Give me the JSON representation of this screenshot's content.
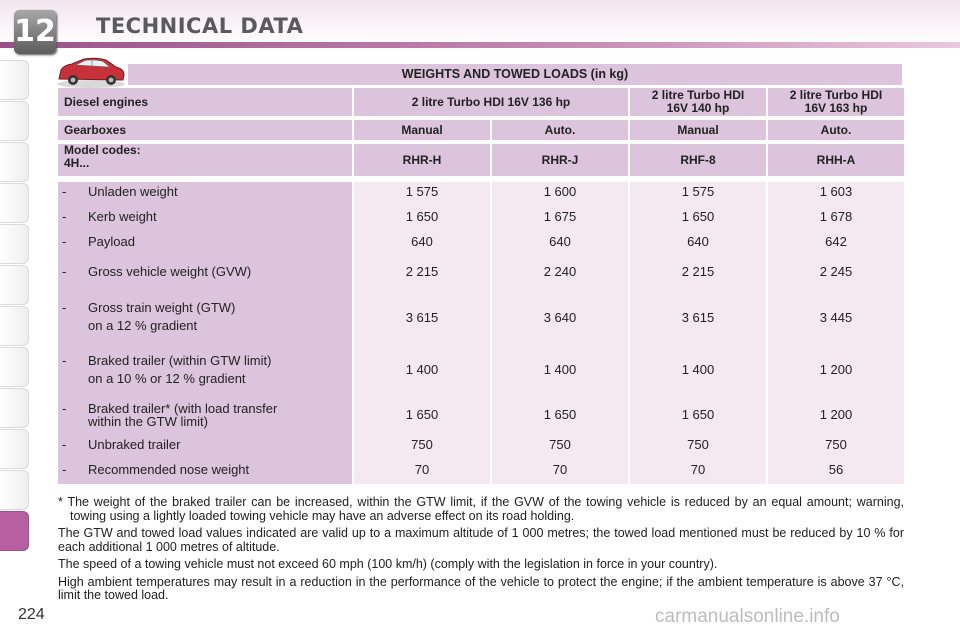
{
  "header": {
    "chapter": "12",
    "title": "TECHNICAL DATA"
  },
  "section_title": "WEIGHTS AND TOWED LOADS (in kg)",
  "engines_row": {
    "label": "Diesel engines",
    "e1": "2 litre Turbo HDI 16V 136 hp",
    "e2_line1": "2 litre Turbo HDI",
    "e2_line2": "16V 140 hp",
    "e3_line1": "2 litre Turbo HDI",
    "e3_line2": "16V 163 hp"
  },
  "gearboxes_row": {
    "label": "Gearboxes",
    "values": [
      "Manual",
      "Auto.",
      "Manual",
      "Auto."
    ]
  },
  "codes_row": {
    "label_line1": "Model codes:",
    "label_line2": "4H...",
    "values": [
      "RHR-H",
      "RHR-J",
      "RHF-8",
      "RHH-A"
    ]
  },
  "rows": [
    {
      "dash": "-",
      "label": "Unladen weight",
      "values": [
        "1 575",
        "1 600",
        "1 575",
        "1 603"
      ]
    },
    {
      "dash": "-",
      "label": "Kerb weight",
      "values": [
        "1 650",
        "1 675",
        "1 650",
        "1 678"
      ]
    },
    {
      "dash": "-",
      "label": "Payload",
      "values": [
        "640",
        "640",
        "640",
        "642"
      ]
    },
    {
      "dash": "-",
      "label": "Gross vehicle weight (GVW)",
      "values": [
        "2 215",
        "2 240",
        "2 215",
        "2 245"
      ]
    },
    {
      "dash": "-",
      "label": "Gross train weight (GTW)",
      "label2": "on a 12 % gradient",
      "values": [
        "3 615",
        "3 640",
        "3 615",
        "3 445"
      ]
    },
    {
      "dash": "-",
      "label": "Braked trailer (within GTW limit)",
      "label2": "on a 10 % or 12 % gradient",
      "values": [
        "1 400",
        "1 400",
        "1 400",
        "1 200"
      ]
    },
    {
      "dash": "-",
      "label": "Braked trailer* (with load transfer",
      "label2": "within the GTW limit)",
      "values": [
        "1 650",
        "1 650",
        "1 650",
        "1 200"
      ]
    },
    {
      "dash": "-",
      "label": "Unbraked trailer",
      "values": [
        "750",
        "750",
        "750",
        "750"
      ]
    },
    {
      "dash": "-",
      "label": "Recommended nose weight",
      "values": [
        "70",
        "70",
        "70",
        "56"
      ]
    }
  ],
  "notes": [
    "* The weight of the braked trailer can be increased, within the GTW limit, if the GVW of the towing vehicle is reduced by an equal amount; warning, towing using a lightly loaded towing vehicle may have an adverse effect on its road holding.",
    "The GTW and towed load values indicated are valid up to a maximum altitude of 1 000 metres; the towed load mentioned must be reduced by 10 % for each additional 1 000 metres of altitude.",
    "The speed of a towing vehicle must not exceed 60 mph (100 km/h) (comply with the legislation in force in your country).",
    "High ambient temperatures may result in a reduction in the performance of the vehicle to protect the engine; if the ambient temperature is above 37 °C, limit the towed load."
  ],
  "page_number": "224",
  "watermark": "carmanualsonline.info",
  "icons": {
    "car": "car-icon"
  },
  "colors": {
    "header_band": "#9a4f86",
    "table_header": "#dcc4dc",
    "data_cell": "#f4e8f1",
    "active_tab": "#b75fa0"
  }
}
